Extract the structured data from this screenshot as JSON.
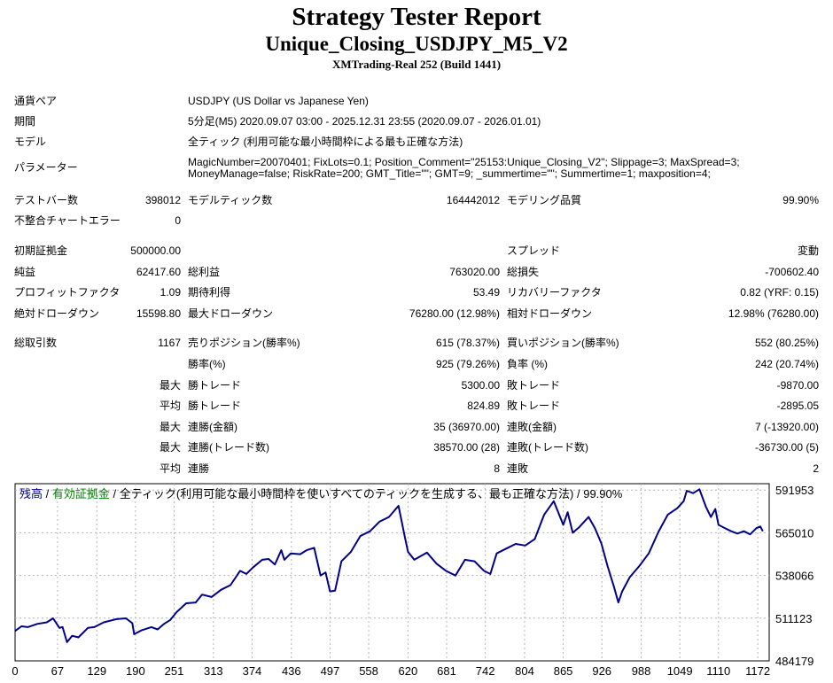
{
  "header": {
    "title": "Strategy Tester Report",
    "ea_name": "Unique_Closing_USDJPY_M5_V2",
    "server": "XMTrading-Real 252 (Build 1441)"
  },
  "info": {
    "symbol_label": "通貨ペア",
    "symbol_value": "USDJPY (US Dollar vs Japanese Yen)",
    "period_label": "期間",
    "period_value": "5分足(M5) 2020.09.07 03:00 - 2025.12.31 23:55 (2020.09.07 - 2026.01.01)",
    "model_label": "モデル",
    "model_value": "全ティック (利用可能な最小時間枠による最も正確な方法)",
    "params_label": "パラメーター",
    "params_line1": "MagicNumber=20070401; FixLots=0.1; Position_Comment=\"25153:Unique_Closing_V2\"; Slippage=3; MaxSpread=3;",
    "params_line2": "MoneyManage=false; RiskRate=200; GMT_Title=\"\"; GMT=9; _summertime=\"\"; Summertime=1; maxposition=4;"
  },
  "stats": {
    "bars_label": "テストバー数",
    "bars_value": "398012",
    "ticks_label": "モデルティック数",
    "ticks_value": "164442012",
    "quality_label": "モデリング品質",
    "quality_value": "99.90%",
    "errors_label": "不整合チャートエラー",
    "errors_value": "0",
    "deposit_label": "初期証拠金",
    "deposit_value": "500000.00",
    "spread_label": "スプレッド",
    "spread_value": "変動",
    "net_label": "純益",
    "net_value": "62417.60",
    "gross_profit_label": "総利益",
    "gross_profit_value": "763020.00",
    "gross_loss_label": "総損失",
    "gross_loss_value": "-700602.40",
    "pf_label": "プロフィットファクタ",
    "pf_value": "1.09",
    "payoff_label": "期待利得",
    "payoff_value": "53.49",
    "recovery_label": "リカバリーファクタ",
    "recovery_value": "0.82 (YRF: 0.15)",
    "abs_dd_label": "絶対ドローダウン",
    "abs_dd_value": "15598.80",
    "max_dd_label": "最大ドローダウン",
    "max_dd_value": "76280.00 (12.98%)",
    "rel_dd_label": "相対ドローダウン",
    "rel_dd_value": "12.98% (76280.00)",
    "trades_label": "総取引数",
    "trades_value": "1167",
    "short_label": "売りポジション(勝率%)",
    "short_value": "615 (78.37%)",
    "long_label": "買いポジション(勝率%)",
    "long_value": "552 (80.25%)",
    "win_rate_label": "勝率(%)",
    "win_rate_value": "925 (79.26%)",
    "loss_rate_label": "負率 (%)",
    "loss_rate_value": "242 (20.74%)",
    "max_word": "最大",
    "avg_word": "平均",
    "largest_win_label": "勝トレード",
    "largest_win_value": "5300.00",
    "largest_loss_label": "敗トレード",
    "largest_loss_value": "-9870.00",
    "avg_win_label": "勝トレード",
    "avg_win_value": "824.89",
    "avg_loss_label": "敗トレード",
    "avg_loss_value": "-2895.05",
    "max_consec_wins_label": "連勝(金額)",
    "max_consec_wins_value": "35 (36970.00)",
    "max_consec_losses_label": "連敗(金額)",
    "max_consec_losses_value": "7 (-13920.00)",
    "max_consec_profit_label": "連勝(トレード数)",
    "max_consec_profit_value": "38570.00 (28)",
    "max_consec_loss_label": "連敗(トレード数)",
    "max_consec_loss_value": "-36730.00 (5)",
    "avg_consec_wins_label": "連勝",
    "avg_consec_wins_value": "8",
    "avg_consec_losses_label": "連敗",
    "avg_consec_losses_value": "2"
  },
  "chart_legend": {
    "balance": "残高",
    "sep1": " / ",
    "equity": "有効証拠金",
    "rest": " / 全ティック(利用可能な最小時間枠を使いすべてのティックを生成する、最も正確な方法) / 99.90%"
  },
  "chart_data": {
    "type": "line",
    "title": "",
    "xlabel": "",
    "ylabel": "",
    "x_ticks": [
      0,
      67,
      129,
      190,
      251,
      313,
      374,
      436,
      497,
      558,
      620,
      681,
      742,
      804,
      865,
      926,
      988,
      1049,
      1110,
      1172
    ],
    "y_ticks": [
      484179,
      511123,
      538066,
      565010,
      591953
    ],
    "xlim": [
      0,
      1190
    ],
    "ylim": [
      484179,
      596000
    ],
    "grid": true,
    "colors": {
      "balance": "#00008b",
      "equity": "#008000"
    },
    "series": [
      {
        "name": "残高",
        "x": [
          0,
          10,
          20,
          35,
          50,
          60,
          70,
          75,
          82,
          90,
          100,
          115,
          125,
          140,
          160,
          175,
          185,
          188,
          200,
          215,
          225,
          235,
          245,
          255,
          270,
          285,
          295,
          310,
          325,
          340,
          355,
          365,
          375,
          390,
          400,
          410,
          420,
          425,
          435,
          450,
          460,
          472,
          482,
          490,
          497,
          505,
          515,
          530,
          545,
          560,
          575,
          590,
          605,
          615,
          620,
          630,
          650,
          665,
          680,
          695,
          710,
          725,
          740,
          750,
          760,
          775,
          790,
          805,
          820,
          835,
          850,
          865,
          872,
          880,
          890,
          905,
          915,
          925,
          935,
          945,
          952,
          958,
          970,
          985,
          1000,
          1015,
          1030,
          1045,
          1055,
          1060,
          1070,
          1080,
          1090,
          1098,
          1105,
          1110,
          1120,
          1130,
          1140,
          1150,
          1160,
          1170,
          1176,
          1180
        ],
        "y": [
          503000,
          506000,
          505500,
          507500,
          508500,
          511000,
          505000,
          505500,
          496000,
          500000,
          499000,
          505000,
          505500,
          508500,
          510500,
          511000,
          508000,
          501000,
          503500,
          505500,
          504000,
          507500,
          510000,
          515000,
          520500,
          521000,
          526000,
          524500,
          529000,
          532000,
          541000,
          539000,
          543000,
          548000,
          548500,
          545000,
          554000,
          548000,
          552000,
          551500,
          554000,
          555500,
          538000,
          540000,
          528000,
          528500,
          547000,
          553000,
          563000,
          566000,
          572000,
          575000,
          582000,
          562500,
          553000,
          548000,
          552500,
          545500,
          541000,
          538000,
          548000,
          547000,
          541000,
          539000,
          552000,
          555000,
          558000,
          557000,
          561000,
          576500,
          585000,
          570000,
          578000,
          565000,
          568500,
          575000,
          568000,
          558500,
          544000,
          531000,
          521000,
          528000,
          537000,
          544000,
          552000,
          565500,
          576500,
          580500,
          585000,
          591500,
          590000,
          592500,
          581500,
          575000,
          580000,
          570000,
          568000,
          566000,
          564500,
          566000,
          564000,
          568000,
          569000,
          566000
        ]
      }
    ]
  }
}
